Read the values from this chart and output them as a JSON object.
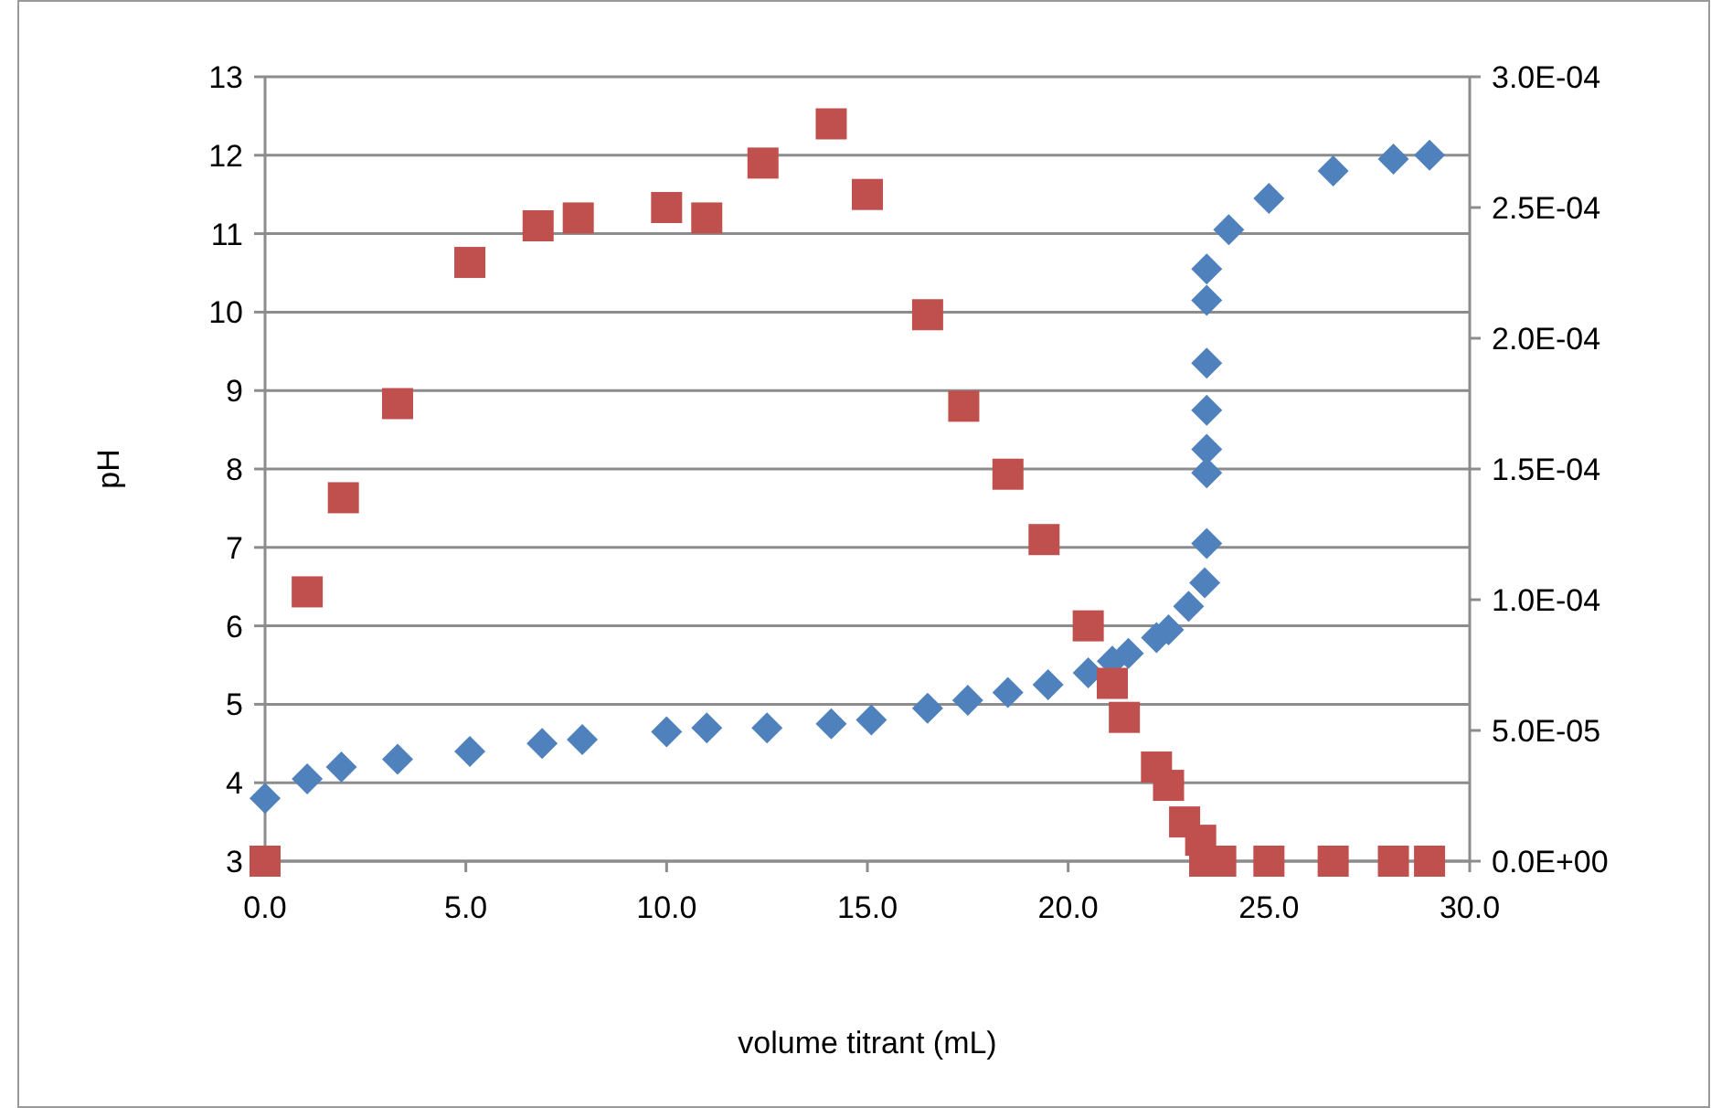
{
  "chart_data": {
    "type": "scatter",
    "xlabel": "volume titrant  (mL)",
    "ylabel": "pH",
    "xlim": [
      0,
      30
    ],
    "xticks": [
      {
        "value": 0,
        "label": "0.0"
      },
      {
        "value": 5,
        "label": "5.0"
      },
      {
        "value": 10,
        "label": "10.0"
      },
      {
        "value": 15,
        "label": "15.0"
      },
      {
        "value": 20,
        "label": "20.0"
      },
      {
        "value": 25,
        "label": "25.0"
      },
      {
        "value": 30,
        "label": "30.0"
      }
    ],
    "ylim": [
      3,
      13
    ],
    "yticks": [
      3,
      4,
      5,
      6,
      7,
      8,
      9,
      10,
      11,
      12,
      13
    ],
    "y2lim": [
      0,
      0.0003
    ],
    "y2ticks": [
      {
        "value": 0,
        "label": "0.0E+00"
      },
      {
        "value": 5e-05,
        "label": "5.0E-05"
      },
      {
        "value": 0.0001,
        "label": "1.0E-04"
      },
      {
        "value": 0.00015,
        "label": "1.5E-04"
      },
      {
        "value": 0.0002,
        "label": "2.0E-04"
      },
      {
        "value": 0.00025,
        "label": "2.5E-04"
      },
      {
        "value": 0.0003,
        "label": "3.0E-04"
      }
    ],
    "grid": "y",
    "series": [
      {
        "color": "#4f81bd",
        "marker": "diamond",
        "x": [
          0,
          1.05,
          1.9,
          3.3,
          5.1,
          6.9,
          7.9,
          10,
          11,
          12.5,
          14.1,
          15.1,
          16.5,
          17.5,
          18.5,
          19.5,
          20.5,
          21.1,
          21.5,
          22.2,
          22.5,
          23,
          23.4,
          23.45,
          23.45,
          23.45,
          23.45,
          23.45,
          23.45,
          23.45,
          24,
          25,
          26.6,
          28.1,
          29
        ],
        "values": [
          3.8,
          4.05,
          4.2,
          4.3,
          4.4,
          4.5,
          4.55,
          4.65,
          4.7,
          4.7,
          4.75,
          4.8,
          4.95,
          5.05,
          5.15,
          5.25,
          5.4,
          5.55,
          5.65,
          5.85,
          5.95,
          6.25,
          6.55,
          7.05,
          7.95,
          8.25,
          8.75,
          9.35,
          10.15,
          10.55,
          11.05,
          11.45,
          11.8,
          11.95,
          12
        ]
      },
      {
        "color": "#c0504d",
        "marker": "square",
        "axis": "y2",
        "x": [
          0,
          1.05,
          1.95,
          3.3,
          5.1,
          6.8,
          7.8,
          10,
          11,
          12.4,
          14.1,
          15,
          16.5,
          17.4,
          18.5,
          19.4,
          20.5,
          21.1,
          21.4,
          22.2,
          22.5,
          22.9,
          23.3,
          23.4,
          23.8,
          25,
          26.6,
          28.1,
          29
        ],
        "values": [
          0,
          0.000103,
          0.000139,
          0.000175,
          0.000229,
          0.000243,
          0.000246,
          0.00025,
          0.000246,
          0.000267,
          0.000282,
          0.000255,
          0.000209,
          0.000174,
          0.000148,
          0.000123,
          9e-05,
          6.8e-05,
          5.5e-05,
          3.6e-05,
          2.9e-05,
          1.5e-05,
          8e-06,
          0,
          0,
          0,
          0,
          0,
          0
        ]
      }
    ]
  }
}
